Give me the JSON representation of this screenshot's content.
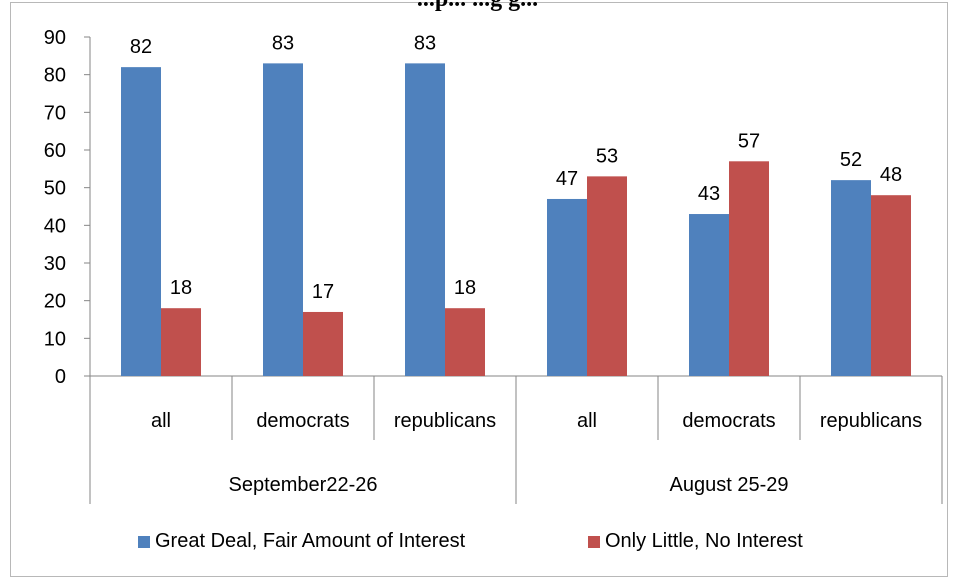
{
  "chart_data": {
    "type": "bar",
    "title": "...p... ...g g...",
    "xlabel": "",
    "ylabel": "",
    "ylim": [
      0,
      90
    ],
    "yticks": [
      "0",
      "10",
      "20",
      "30",
      "40",
      "50",
      "60",
      "70",
      "80",
      "90"
    ],
    "groups": [
      "September22-26",
      "August 25-29"
    ],
    "categories": [
      "all",
      "democrats",
      "republicans",
      "all",
      "democrats",
      "republicans"
    ],
    "series": [
      {
        "name": "Great Deal, Fair Amount of Interest",
        "color": "#4f81bd",
        "values": [
          82,
          83,
          83,
          47,
          43,
          52
        ]
      },
      {
        "name": "Only Little, No Interest",
        "color": "#c0504d",
        "values": [
          18,
          17,
          18,
          53,
          57,
          48
        ]
      }
    ],
    "grid": false,
    "legend": "bottom"
  }
}
